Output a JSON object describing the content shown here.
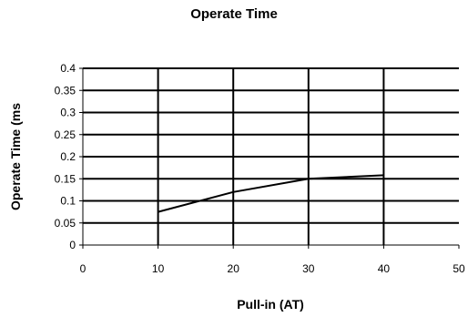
{
  "chart_data": {
    "type": "line",
    "title": "Operate Time",
    "xlabel": "Pull-in (AT)",
    "ylabel": "Operate Time (ms",
    "xlim": [
      0,
      50
    ],
    "ylim": [
      0,
      0.4
    ],
    "x_ticks": [
      0,
      10,
      20,
      30,
      40,
      50
    ],
    "y_ticks": [
      0,
      0.05,
      0.1,
      0.15,
      0.2,
      0.25,
      0.3,
      0.35,
      0.4
    ],
    "x_tick_labels": [
      "0",
      "10",
      "20",
      "30",
      "40",
      "50"
    ],
    "y_tick_labels": [
      "0",
      "0.05",
      "0.1",
      "0.15",
      "0.2",
      "0.25",
      "0.3",
      "0.35",
      "0.4"
    ],
    "grid": true,
    "series": [
      {
        "x": [
          10,
          20,
          30,
          40
        ],
        "y": [
          0.075,
          0.12,
          0.15,
          0.158
        ]
      }
    ]
  }
}
